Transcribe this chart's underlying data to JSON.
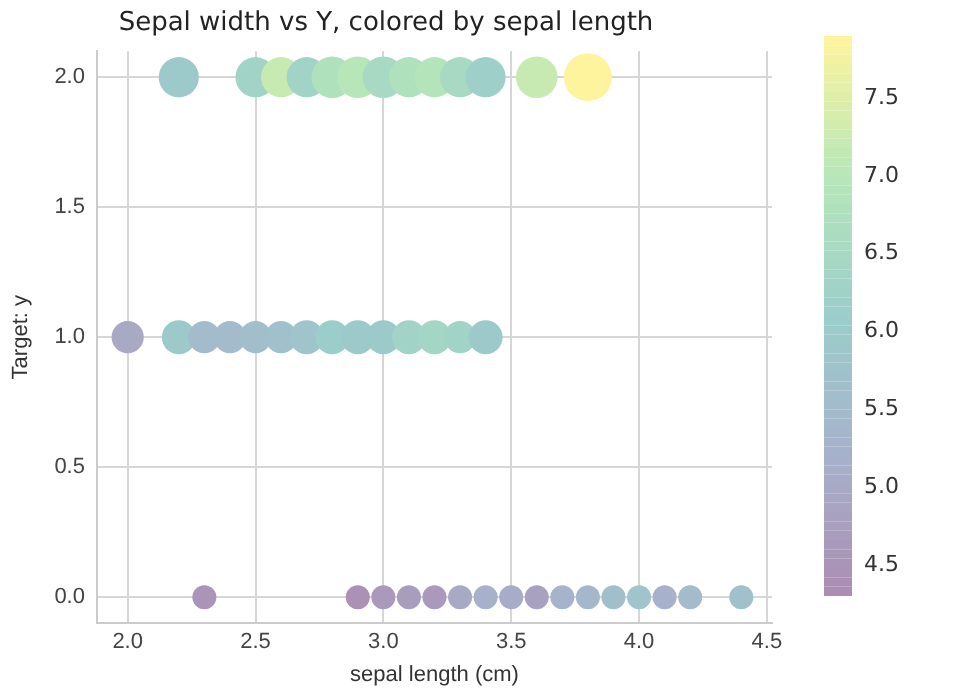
{
  "chart_data": {
    "type": "bubble",
    "title": "Sepal width vs Y, colored by sepal length",
    "xlabel": "sepal length (cm)",
    "ylabel": "Target: y",
    "x": [
      2.2,
      2.5,
      2.6,
      2.7,
      2.8,
      2.9,
      3.0,
      3.1,
      3.2,
      3.3,
      3.4,
      3.6,
      3.8,
      2.0,
      2.2,
      2.3,
      2.4,
      2.5,
      2.6,
      2.7,
      2.8,
      2.9,
      3.0,
      3.1,
      3.2,
      3.3,
      3.4,
      2.3,
      2.9,
      3.0,
      3.1,
      3.2,
      3.3,
      3.4,
      3.5,
      3.6,
      3.7,
      3.8,
      3.9,
      4.0,
      4.1,
      4.2,
      4.4
    ],
    "values": [
      2,
      2,
      2,
      2,
      2,
      2,
      2,
      2,
      2,
      2,
      2,
      2,
      2,
      1,
      1,
      1,
      1,
      1,
      1,
      1,
      1,
      1,
      1,
      1,
      1,
      1,
      1,
      0,
      0,
      0,
      0,
      0,
      0,
      0,
      0,
      0,
      0,
      0,
      0,
      0,
      0,
      0,
      0
    ],
    "sizes": [
      0.7,
      0.7,
      0.7,
      0.7,
      0.75,
      0.75,
      0.75,
      0.7,
      0.7,
      0.7,
      0.7,
      0.75,
      1,
      0.45,
      0.5,
      0.45,
      0.45,
      0.45,
      0.45,
      0.5,
      0.5,
      0.5,
      0.5,
      0.5,
      0.5,
      0.45,
      0.5,
      0.25,
      0.25,
      0.25,
      0.25,
      0.25,
      0.25,
      0.25,
      0.25,
      0.25,
      0.25,
      0.25,
      0.25,
      0.25,
      0.25,
      0.25,
      0.25
    ],
    "cvalues": [
      6.0,
      6.3,
      7.2,
      6.3,
      6.8,
      7.0,
      6.5,
      6.8,
      6.9,
      6.5,
      6.2,
      7.2,
      7.9,
      5.0,
      6.0,
      5.5,
      5.5,
      5.6,
      5.7,
      5.8,
      6.1,
      6.0,
      6.0,
      6.3,
      6.4,
      6.3,
      6.0,
      4.5,
      4.4,
      4.6,
      4.7,
      4.6,
      5.0,
      5.2,
      5.1,
      4.8,
      5.3,
      5.4,
      5.6,
      5.8,
      5.2,
      5.5,
      5.7
    ],
    "xlim": [
      1.88,
      4.52
    ],
    "xticks": [
      {
        "value": 2,
        "label": "2.0"
      },
      2.5,
      {
        "value": 3,
        "label": "3.0"
      },
      3.5,
      {
        "value": 4,
        "label": "4.0"
      },
      4.5
    ],
    "ylim": [
      -0.1,
      2.1
    ],
    "yticks": [
      {
        "value": 0,
        "label": "0.0"
      },
      0.5,
      {
        "value": 1,
        "label": "1.0"
      },
      1.5,
      {
        "value": 2,
        "label": "2.0"
      }
    ],
    "clim": [
      4.3,
      7.9
    ],
    "cticks": [
      4.5,
      {
        "value": 5,
        "label": "5.0"
      },
      5.5,
      {
        "value": 6,
        "label": "6.0"
      },
      6.5,
      {
        "value": 7,
        "label": "7.0"
      },
      7.5
    ],
    "grid": true,
    "legend": false
  }
}
